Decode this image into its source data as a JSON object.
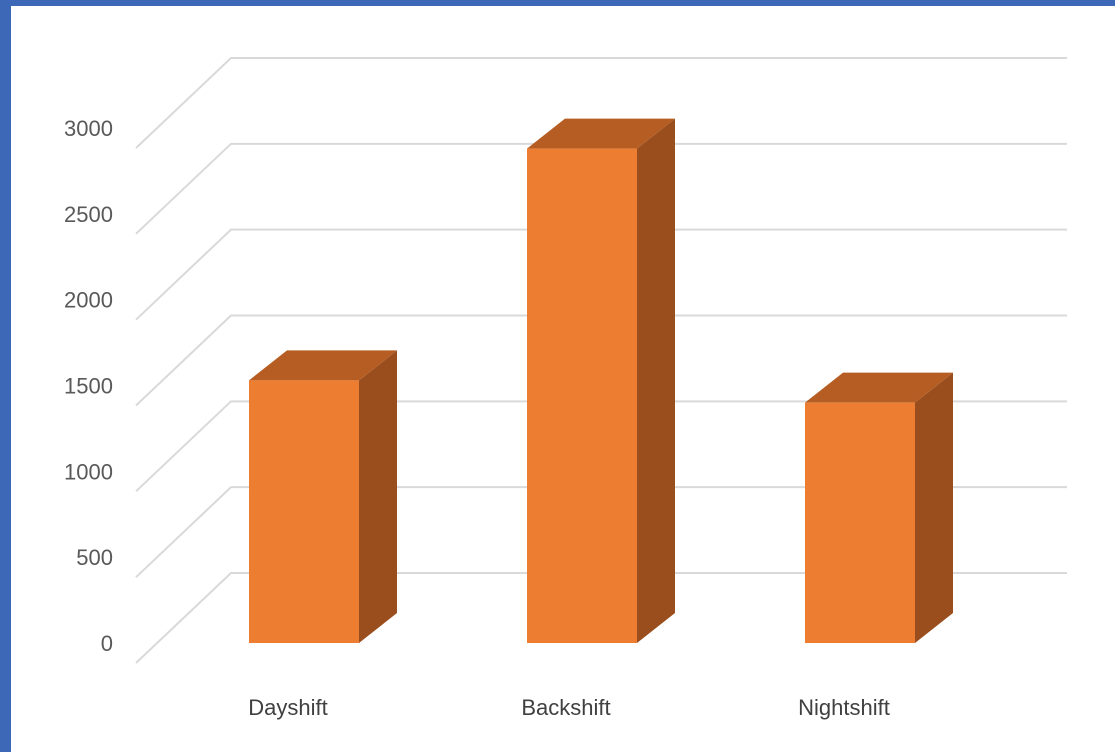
{
  "chart_data": {
    "type": "bar",
    "style": "3d-column",
    "categories": [
      "Dayshift",
      "Backshift",
      "Nightshift"
    ],
    "values": [
      1530,
      2880,
      1400
    ],
    "title": "",
    "xlabel": "",
    "ylabel": "",
    "ylim": [
      0,
      3000
    ],
    "yticks": [
      "0",
      "500",
      "1000",
      "1500",
      "2000",
      "2500",
      "3000"
    ],
    "grid": true,
    "legend": "none"
  },
  "colors": {
    "bar_front": "#ED7D31",
    "bar_top": "#B55D22",
    "bar_side": "#9B4E1D",
    "gridline": "#D9D9D9",
    "frame_border": "#3D68B8"
  }
}
